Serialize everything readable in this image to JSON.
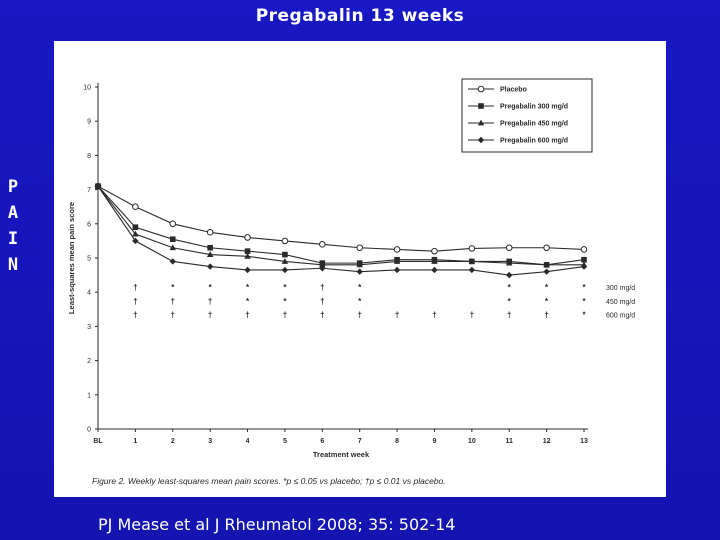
{
  "slide": {
    "title": "Pregabalin 13 weeks",
    "side_label": [
      "P",
      "A",
      "I",
      "N"
    ],
    "citation": "PJ Mease et al J Rheumatol 2008; 35: 502-14"
  },
  "chart_data": {
    "type": "line",
    "categories": [
      "BL",
      "1",
      "2",
      "3",
      "4",
      "5",
      "6",
      "7",
      "8",
      "9",
      "10",
      "11",
      "12",
      "13"
    ],
    "ylim": [
      0,
      10
    ],
    "yticks": [
      "0",
      "1",
      "2",
      "3",
      "4",
      "5",
      "6",
      "7",
      "8",
      "9",
      "10"
    ],
    "xlabel": "Treatment week",
    "ylabel": "Least-squares mean pain score",
    "legend_position": "top-right",
    "series": [
      {
        "name": "Placebo",
        "marker": "open-circle",
        "values": [
          7.1,
          6.5,
          6.0,
          5.75,
          5.6,
          5.5,
          5.4,
          5.3,
          5.25,
          5.2,
          5.28,
          5.3,
          5.3,
          5.25
        ]
      },
      {
        "name": "Pregabalin 300 mg/d",
        "marker": "square",
        "values": [
          7.1,
          5.9,
          5.55,
          5.3,
          5.2,
          5.1,
          4.85,
          4.85,
          4.95,
          4.95,
          4.9,
          4.9,
          4.8,
          4.95
        ]
      },
      {
        "name": "Pregabalin 450 mg/d",
        "marker": "triangle",
        "values": [
          7.1,
          5.7,
          5.3,
          5.1,
          5.05,
          4.9,
          4.8,
          4.8,
          4.9,
          4.9,
          4.9,
          4.85,
          4.8,
          4.8
        ]
      },
      {
        "name": "Pregabalin 600 mg/d",
        "marker": "diamond",
        "values": [
          7.1,
          5.5,
          4.9,
          4.75,
          4.65,
          4.65,
          4.7,
          4.6,
          4.65,
          4.65,
          4.65,
          4.5,
          4.6,
          4.75
        ]
      }
    ],
    "significance": {
      "row_labels": [
        "300 mg/d",
        "450 mg/d",
        "600 mg/d"
      ],
      "rows": [
        [
          "",
          "†",
          "*",
          "*",
          "*",
          "*",
          "†",
          "*",
          "",
          "",
          "",
          "*",
          "*",
          "*"
        ],
        [
          "",
          "†",
          "†",
          "†",
          "*",
          "*",
          "†",
          "*",
          "",
          "",
          "",
          "*",
          "*",
          "*"
        ],
        [
          "",
          "†",
          "†",
          "†",
          "†",
          "†",
          "†",
          "†",
          "†",
          "†",
          "†",
          "†",
          "†",
          "*"
        ]
      ]
    },
    "caption": "Figure 2. Weekly least-squares mean pain scores. *p ≤ 0.05 vs placebo; †p ≤ 0.01 vs placebo."
  }
}
